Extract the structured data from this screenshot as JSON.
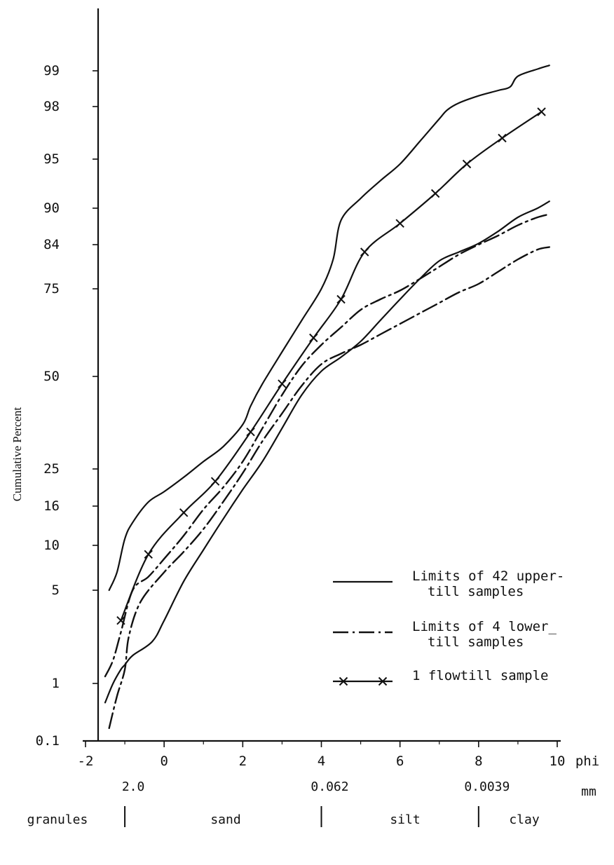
{
  "chart_data": {
    "type": "line",
    "title": "",
    "xlabel": "phi",
    "x_unit_label_2": "mm",
    "ylabel": "Cumulative Percent",
    "xlim": [
      -2,
      10
    ],
    "y_scale": "probability",
    "y_ticks": [
      0.1,
      1,
      5,
      10,
      16,
      25,
      50,
      75,
      84,
      90,
      95,
      98,
      99
    ],
    "y_tick_labels": [
      "0.1",
      "1",
      "5",
      "10",
      "16",
      "25",
      "50",
      "75",
      "84",
      "90",
      "95",
      "98",
      "99"
    ],
    "x_ticks": [
      -2,
      0,
      2,
      4,
      6,
      8,
      10
    ],
    "x_tick_labels": [
      "-2",
      "0",
      "2",
      "4",
      "6",
      "8",
      "10"
    ],
    "mm_ticks": [
      {
        "phi": -1,
        "label": "2.0"
      },
      {
        "phi": 4,
        "label": "0.062"
      },
      {
        "phi": 8,
        "label": "0.0039"
      }
    ],
    "size_classes": [
      "granules",
      "sand",
      "silt",
      "clay"
    ],
    "grid": false,
    "legend_position": "right-middle",
    "series": [
      {
        "name": "Limits of 42 upper-till samples",
        "legend_lines": [
          "Limits of 42 upper-",
          "till samples"
        ],
        "style": "solid",
        "role": "upper-limit",
        "x": [
          -1.4,
          -1.2,
          -1.0,
          -0.8,
          -0.4,
          0,
          0.5,
          1.0,
          1.5,
          2.0,
          2.2,
          2.5,
          3.0,
          3.5,
          4.0,
          4.3,
          4.5,
          5.0,
          5.5,
          6.0,
          6.5,
          7.0,
          7.2,
          7.5,
          8.0,
          8.5,
          8.8,
          9.0,
          9.5,
          9.8
        ],
        "y": [
          5,
          7,
          11,
          13.5,
          17,
          19.5,
          23,
          27,
          31,
          37,
          42,
          48,
          57,
          66,
          75,
          81,
          88,
          91,
          92.8,
          94.5,
          96,
          97.3,
          97.8,
          98.1,
          98.3,
          98.45,
          98.55,
          98.85,
          99.05,
          99.15
        ]
      },
      {
        "name": "Limits of 42 upper-till samples",
        "style": "solid",
        "role": "lower-limit",
        "x": [
          -1.5,
          -1.3,
          -1.1,
          -1.0,
          -0.8,
          -0.3,
          0,
          0.5,
          1.0,
          1.5,
          2.0,
          2.5,
          3.0,
          3.5,
          4.0,
          4.5,
          5.0,
          5.5,
          6.0,
          6.5,
          7.0,
          7.5,
          8.0,
          8.5,
          9.0,
          9.5,
          9.8
        ],
        "y": [
          0.7,
          1.0,
          1.6,
          1.8,
          2.2,
          2.8,
          3.7,
          6,
          9.5,
          14,
          20,
          27,
          36,
          45,
          51.5,
          55.5,
          60,
          66,
          72,
          77,
          80.7,
          82.5,
          84.2,
          86.2,
          88.5,
          90,
          90.7
        ]
      },
      {
        "name": "Limits of 4 lower-till samples",
        "legend_lines": [
          "Limits of 4 lower_",
          "till samples"
        ],
        "style": "dashdot",
        "role": "upper-limit",
        "x": [
          -1.5,
          -1.3,
          -1.1,
          -0.8,
          -0.4,
          0,
          0.5,
          1.0,
          1.5,
          2.0,
          2.5,
          3.0,
          3.5,
          4.0,
          4.5,
          5.0,
          5.5,
          6.0,
          6.5,
          7.0,
          7.5,
          8.0,
          8.5,
          9.0,
          9.5,
          9.8
        ],
        "y": [
          1.3,
          2,
          3.2,
          5,
          6.5,
          8.5,
          11.5,
          15.5,
          20.5,
          27,
          36,
          45,
          53,
          59,
          64,
          69,
          72,
          74.5,
          77,
          79.5,
          82,
          84,
          85.5,
          87.2,
          88.5,
          89
        ]
      },
      {
        "name": "Limits of 4 lower-till samples",
        "style": "dashdot",
        "role": "lower-limit",
        "x": [
          -1.4,
          -1.2,
          -1.0,
          -0.9,
          -0.6,
          0,
          0.5,
          1.0,
          1.5,
          2.0,
          2.5,
          3.0,
          3.5,
          4.0,
          4.5,
          5.0,
          5.5,
          6.0,
          6.5,
          7.0,
          7.5,
          8.0,
          8.5,
          9.0,
          9.5,
          9.8
        ],
        "y": [
          0.3,
          0.8,
          1.6,
          3,
          4.5,
          7,
          9.3,
          12.5,
          17,
          24,
          32.5,
          40,
          47.5,
          53.5,
          56.5,
          59,
          62,
          65,
          68,
          71,
          74,
          76,
          78.5,
          81,
          83,
          83.5
        ]
      },
      {
        "name": "1 flowtill sample",
        "style": "solid-cross",
        "role": "sample",
        "x": [
          -1.1,
          -0.4,
          0.5,
          1.3,
          2.2,
          3.0,
          3.8,
          4.5,
          5.1,
          6.0,
          6.9,
          7.7,
          8.6,
          9.6
        ],
        "y": [
          3.7,
          9,
          15,
          22,
          35,
          48,
          61,
          72,
          82.5,
          87.5,
          91.5,
          94.5,
          96.2,
          97.7
        ]
      }
    ],
    "legend": [
      {
        "style": "solid",
        "lines": [
          "Limits of 42 upper-",
          "till samples"
        ]
      },
      {
        "style": "dashdot",
        "lines": [
          "Limits of 4 lower_",
          "till samples"
        ]
      },
      {
        "style": "solid-cross",
        "lines": [
          "1 flowtill sample"
        ]
      }
    ]
  }
}
